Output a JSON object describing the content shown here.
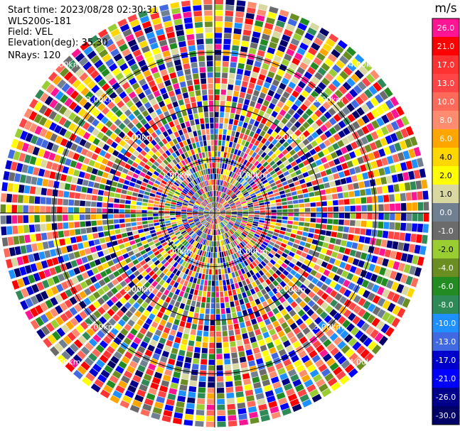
{
  "info": {
    "start_time": "Start time: 2023/08/28 02:30:31",
    "instrument": "WLS200s-181",
    "field": "Field: VEL",
    "elevation": "Elevation(deg): 35.30",
    "nrays": "NRays: 120"
  },
  "colorbar": {
    "unit": "m/s",
    "ticks": [
      "26.0",
      "21.0",
      "17.0",
      "13.0",
      "10.0",
      "8.0",
      "6.0",
      "4.0",
      "2.0",
      "1.0",
      "0.0",
      "-1.0",
      "-2.0",
      "-4.0",
      "-6.0",
      "-8.0",
      "-10.0",
      "-13.0",
      "-17.0",
      "-21.0",
      "-26.0",
      "-30.0"
    ],
    "colors": [
      "#ff1493",
      "#ff0000",
      "#ff3232",
      "#ff4545",
      "#ff6a5a",
      "#ff8c6e",
      "#ffa500",
      "#ffd700",
      "#ffff00",
      "#d8d8a0",
      "#708090",
      "#6b6b6b",
      "#9acd32",
      "#6b8e23",
      "#228b22",
      "#2e8b57",
      "#1e90ff",
      "#4169e1",
      "#0000cd",
      "#0000ff",
      "#00008b",
      "#000066"
    ]
  },
  "chart_data": {
    "type": "heatmap",
    "projection": "polar-ppi",
    "field": "VEL",
    "n_rays": 120,
    "range_ring_labels": [
      "1.00km",
      "2.00km",
      "3.00km",
      "4.00km"
    ],
    "color_scale_min": -30.0,
    "color_scale_max": 26.0
  }
}
